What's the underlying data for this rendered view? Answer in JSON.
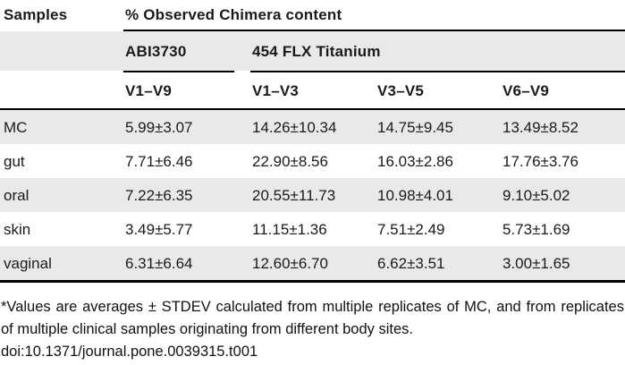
{
  "table": {
    "corner_label": "Samples",
    "top_header": "% Observed Chimera content",
    "group_headers": [
      "ABI3730",
      "454 FLX Titanium"
    ],
    "column_headers": [
      "V1–V9",
      "V1–V3",
      "V3–V5",
      "V6–V9"
    ],
    "rows": [
      {
        "label": "MC",
        "values": [
          "5.99±3.07",
          "14.26±10.34",
          "14.75±9.45",
          "13.49±8.52"
        ]
      },
      {
        "label": "gut",
        "values": [
          "7.71±6.46",
          "22.90±8.56",
          "16.03±2.86",
          "17.76±3.76"
        ]
      },
      {
        "label": "oral",
        "values": [
          "7.22±6.35",
          "20.55±11.73",
          "10.98±4.01",
          "9.10±5.02"
        ]
      },
      {
        "label": "skin",
        "values": [
          "3.49±5.77",
          "11.15±1.36",
          "7.51±2.49",
          "5.73±1.69"
        ]
      },
      {
        "label": "vaginal",
        "values": [
          "6.31±6.64",
          "12.60±6.70",
          "6.62±3.51",
          "3.00±1.65"
        ]
      }
    ]
  },
  "footnote": "*Values are averages ± STDEV calculated from multiple replicates of MC, and from replicates of multiple clinical samples originating from different body sites.",
  "doi": "doi:10.1371/journal.pone.0039315.t001",
  "colors": {
    "row_shade": "#e7eae9",
    "text": "#1a1a1a",
    "rule": "#000000",
    "background": "#ffffff"
  }
}
